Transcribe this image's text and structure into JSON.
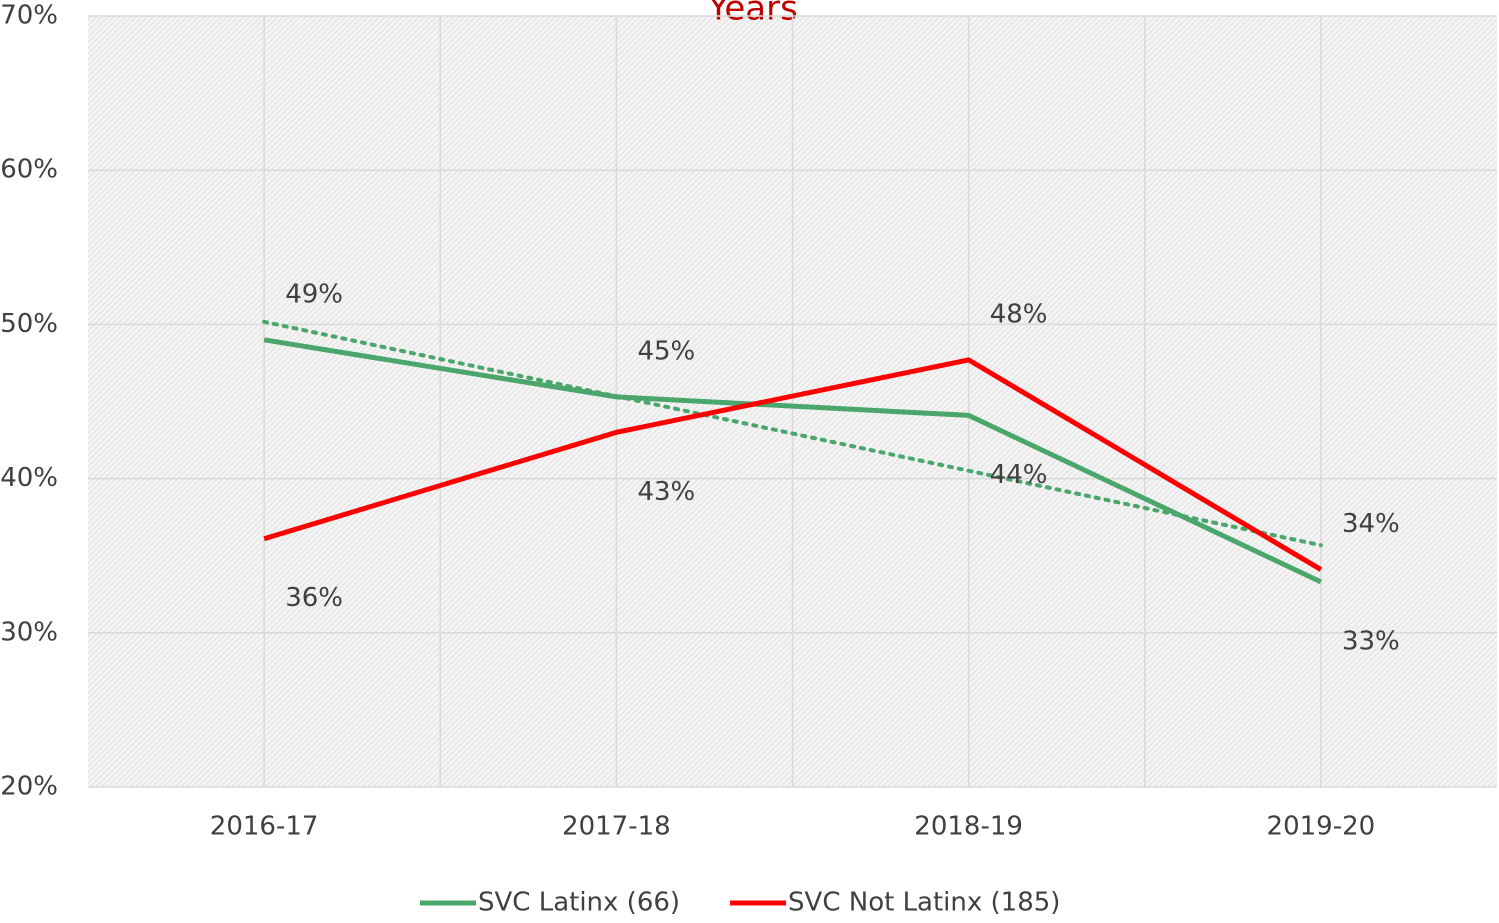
{
  "chart_data": {
    "type": "line",
    "title": "Years",
    "categories": [
      "2016-17",
      "2017-18",
      "2018-19",
      "2019-20"
    ],
    "series": [
      {
        "name": "SVC Latinx (66)",
        "color": "#4aa66a",
        "values": [
          49.0,
          45.3,
          44.1,
          33.3
        ],
        "value_labels": [
          "49%",
          "45%",
          "44%",
          "33%"
        ],
        "trendline": true
      },
      {
        "name": "SVC Not Latinx (185)",
        "color": "#ff0000",
        "values": [
          36.1,
          43.0,
          47.7,
          34.1
        ],
        "value_labels": [
          "36%",
          "43%",
          "48%",
          "34%"
        ]
      }
    ],
    "ylim": [
      20,
      70
    ],
    "yticks": [
      {
        "value": 20,
        "label": "20%"
      },
      {
        "value": 30,
        "label": "30%"
      },
      {
        "value": 40,
        "label": "40%"
      },
      {
        "value": 50,
        "label": "50%"
      },
      {
        "value": 60,
        "label": "60%"
      },
      {
        "value": 70,
        "label": "70%"
      }
    ],
    "grid": true,
    "legend": "bottom"
  }
}
